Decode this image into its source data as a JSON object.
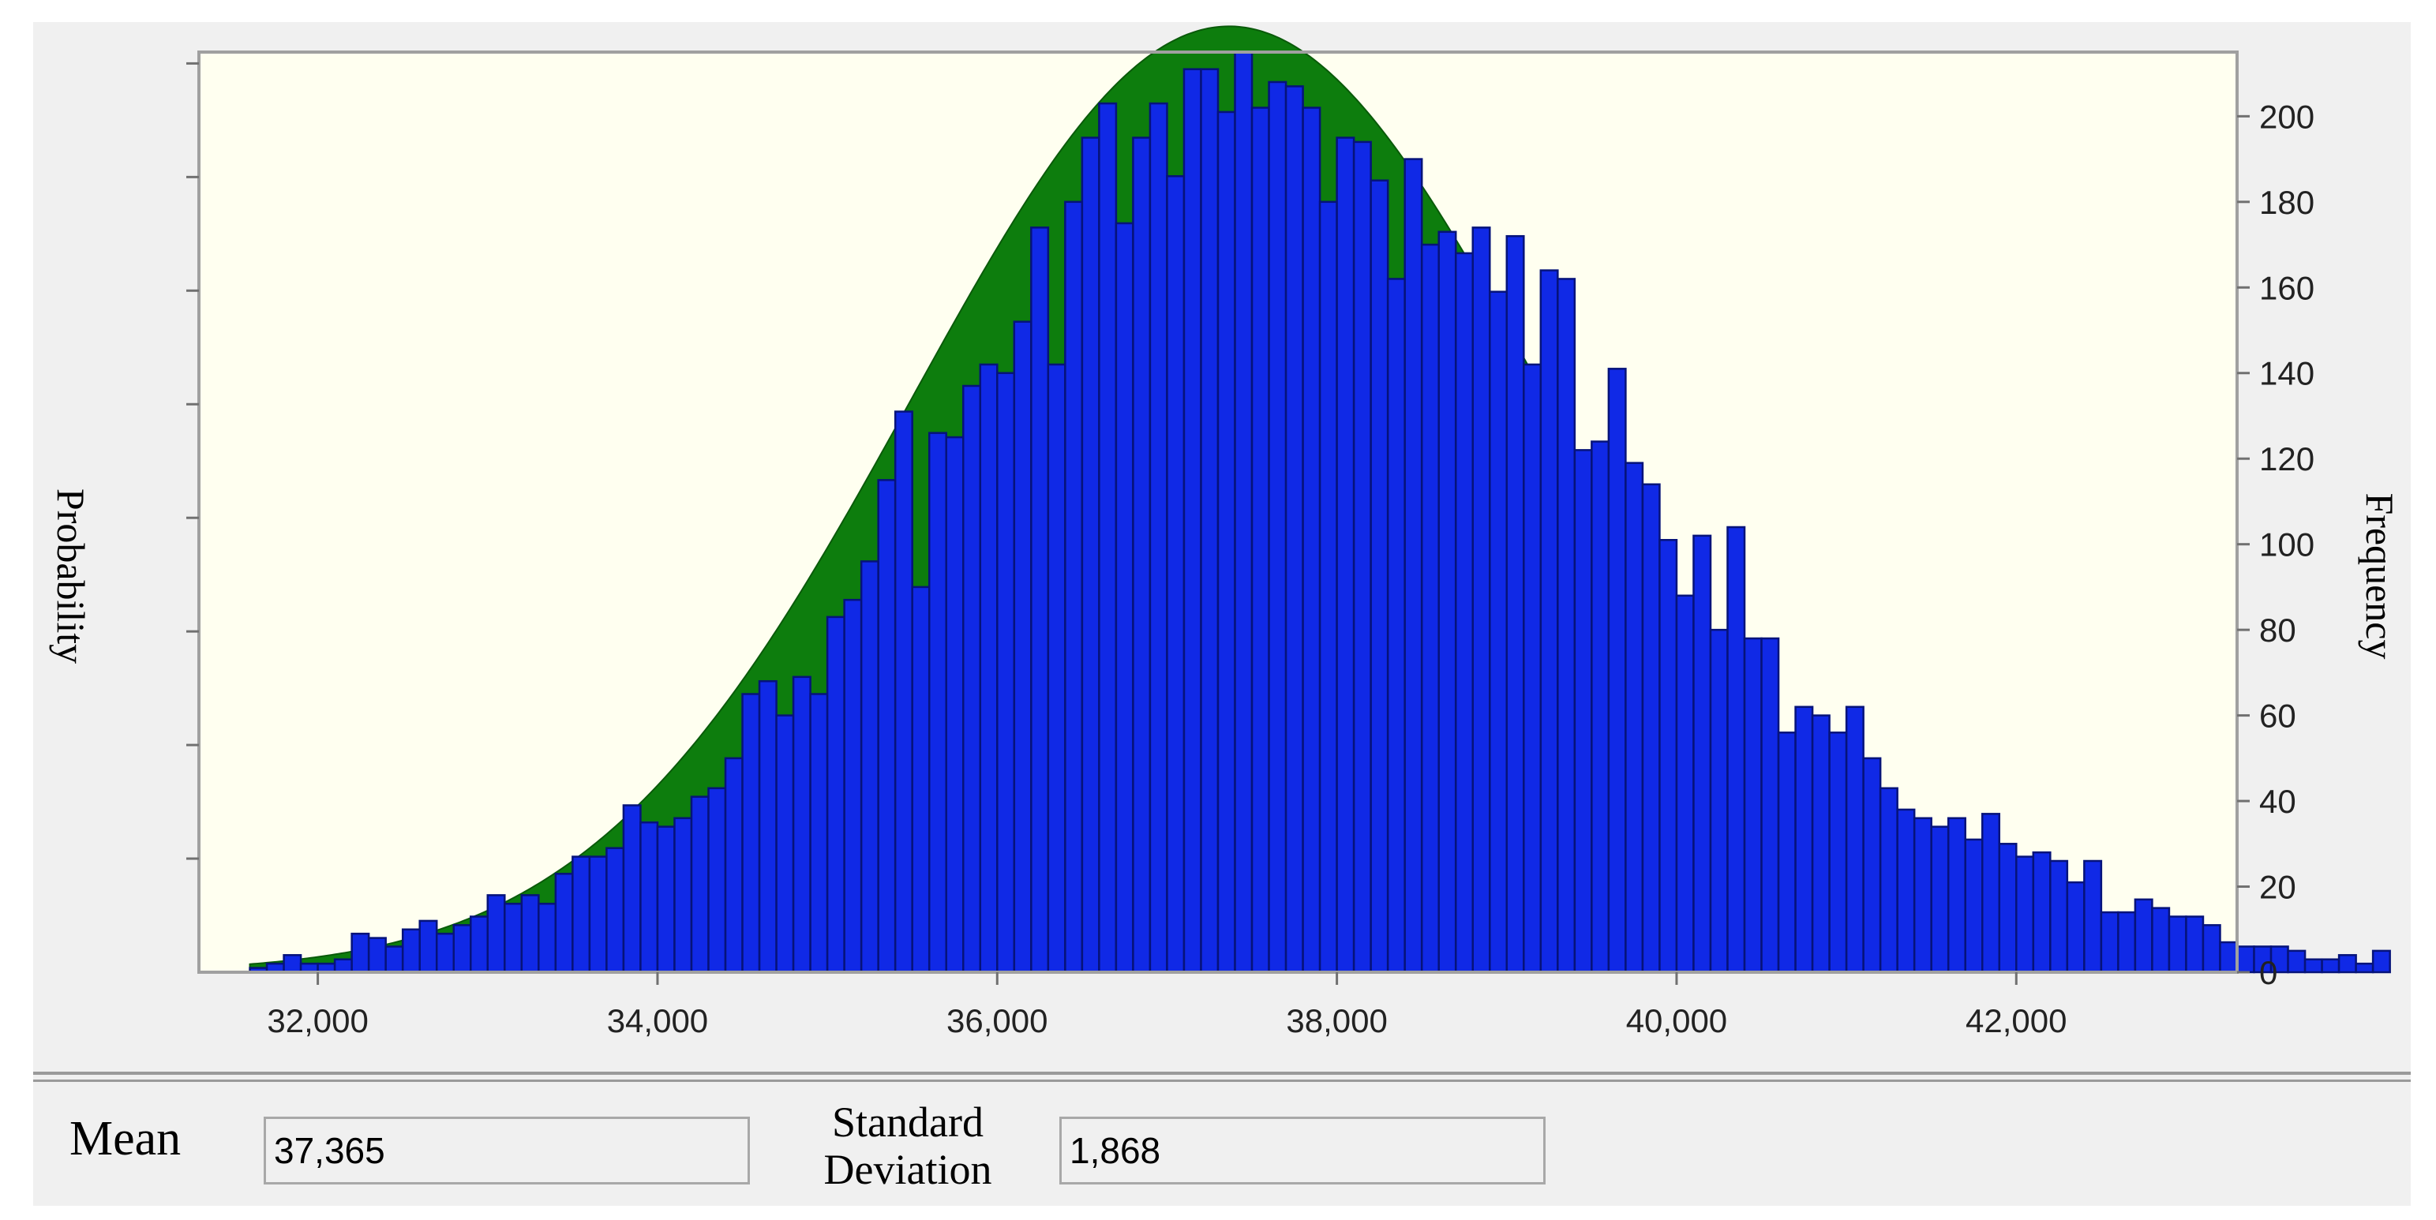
{
  "chart_data": {
    "type": "bar",
    "title": "",
    "ylabel_left": "Probability",
    "ylabel_right": "Frequency",
    "xlabel": "",
    "bin_width": 100,
    "x_start": 31600,
    "xlim": [
      31300,
      43300
    ],
    "ylim_right": [
      0,
      215
    ],
    "xticks": [
      32000,
      34000,
      36000,
      38000,
      40000,
      42000
    ],
    "xtick_labels": [
      "32,000",
      "34,000",
      "36,000",
      "38,000",
      "40,000",
      "42,000"
    ],
    "yticks_right": [
      0,
      20,
      40,
      60,
      80,
      100,
      120,
      140,
      160,
      180,
      200
    ],
    "yticks_right_labels": [
      "0",
      "20",
      "40",
      "60",
      "80",
      "100",
      "120",
      "140",
      "160",
      "180",
      "200"
    ],
    "yticks_left_count": 8,
    "fitted_distribution": {
      "type": "normal",
      "mean": 37365,
      "std": 1868
    },
    "values": [
      1,
      2,
      4,
      2,
      2,
      3,
      9,
      8,
      6,
      10,
      12,
      9,
      11,
      13,
      18,
      16,
      18,
      16,
      23,
      27,
      27,
      29,
      39,
      35,
      34,
      36,
      41,
      43,
      50,
      65,
      68,
      60,
      69,
      65,
      83,
      87,
      96,
      115,
      131,
      90,
      126,
      125,
      137,
      142,
      140,
      152,
      174,
      142,
      180,
      195,
      203,
      175,
      195,
      203,
      186,
      211,
      211,
      201,
      215,
      202,
      208,
      207,
      202,
      180,
      195,
      194,
      185,
      162,
      190,
      170,
      173,
      168,
      174,
      159,
      172,
      142,
      164,
      162,
      122,
      124,
      141,
      119,
      114,
      101,
      88,
      102,
      80,
      104,
      78,
      78,
      56,
      62,
      60,
      56,
      62,
      50,
      43,
      38,
      36,
      34,
      36,
      31,
      37,
      30,
      27,
      28,
      26,
      21,
      26,
      14,
      14,
      17,
      15,
      13,
      13,
      11,
      7,
      6,
      6,
      6,
      5,
      3,
      3,
      4,
      2,
      5
    ]
  },
  "colors": {
    "bar_fill": "#1029e6",
    "bar_stroke": "#06137a",
    "curve_fill": "#0d7d0d",
    "plot_bg": "#fffff0",
    "panel_bg": "#f0f0f0"
  },
  "stats": {
    "mean_label": "Mean",
    "mean_value": "37,365",
    "sd_label_line1": "Standard",
    "sd_label_line2": "Deviation",
    "sd_value": "1,868"
  }
}
